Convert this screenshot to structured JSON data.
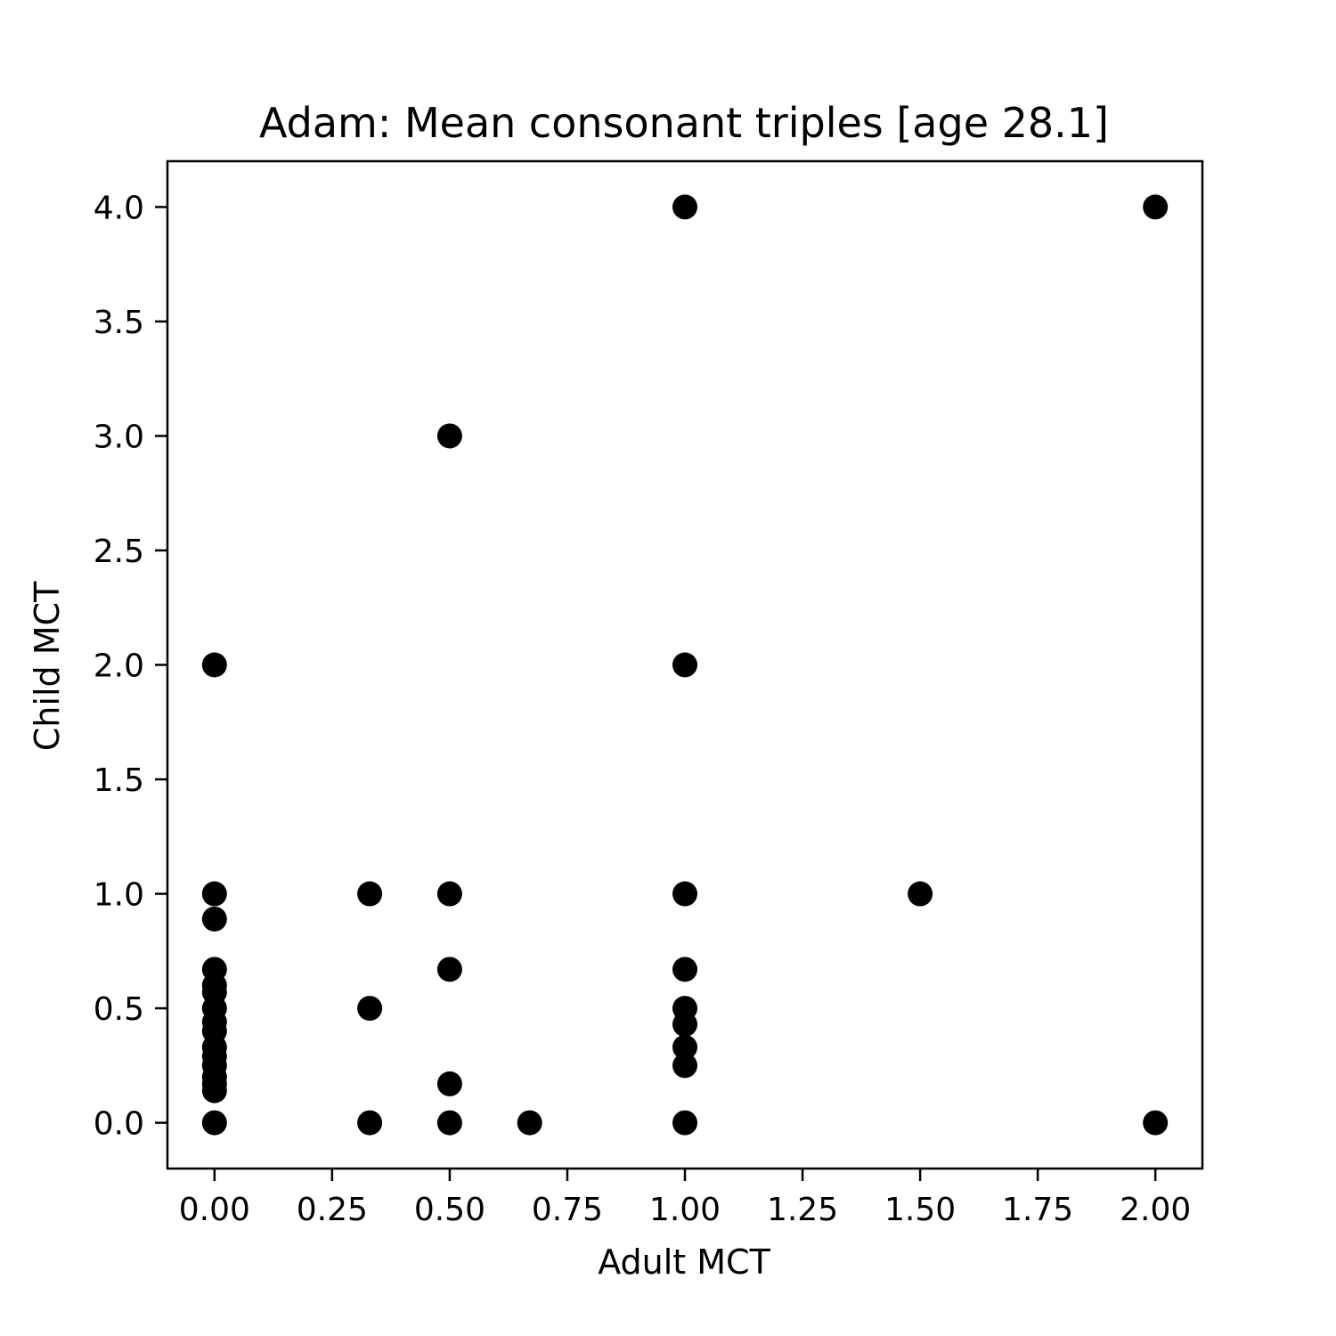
{
  "chart_data": {
    "type": "scatter",
    "title": "Adam: Mean consonant triples [age 28.1]",
    "xlabel": "Adult MCT",
    "ylabel": "Child MCT",
    "xlim": [
      -0.1,
      2.1
    ],
    "ylim": [
      -0.2,
      4.2
    ],
    "grid": false,
    "marker_color": "#000000",
    "xticks": [
      0.0,
      0.25,
      0.5,
      0.75,
      1.0,
      1.25,
      1.5,
      1.75,
      2.0
    ],
    "xtick_labels": [
      "0.00",
      "0.25",
      "0.50",
      "0.75",
      "1.00",
      "1.25",
      "1.50",
      "1.75",
      "2.00"
    ],
    "yticks": [
      0.0,
      0.5,
      1.0,
      1.5,
      2.0,
      2.5,
      3.0,
      3.5,
      4.0
    ],
    "ytick_labels": [
      "0.0",
      "0.5",
      "1.0",
      "1.5",
      "2.0",
      "2.5",
      "3.0",
      "3.5",
      "4.0"
    ],
    "points": [
      {
        "x": 0.0,
        "y": 2.0
      },
      {
        "x": 0.0,
        "y": 1.0
      },
      {
        "x": 0.0,
        "y": 0.89
      },
      {
        "x": 0.0,
        "y": 0.67
      },
      {
        "x": 0.0,
        "y": 0.6
      },
      {
        "x": 0.0,
        "y": 0.57
      },
      {
        "x": 0.0,
        "y": 0.5
      },
      {
        "x": 0.0,
        "y": 0.44
      },
      {
        "x": 0.0,
        "y": 0.4
      },
      {
        "x": 0.0,
        "y": 0.33
      },
      {
        "x": 0.0,
        "y": 0.29
      },
      {
        "x": 0.0,
        "y": 0.25
      },
      {
        "x": 0.0,
        "y": 0.2
      },
      {
        "x": 0.0,
        "y": 0.17
      },
      {
        "x": 0.0,
        "y": 0.14
      },
      {
        "x": 0.0,
        "y": 0.0
      },
      {
        "x": 0.33,
        "y": 1.0
      },
      {
        "x": 0.33,
        "y": 0.5
      },
      {
        "x": 0.33,
        "y": 0.0
      },
      {
        "x": 0.5,
        "y": 3.0
      },
      {
        "x": 0.5,
        "y": 1.0
      },
      {
        "x": 0.5,
        "y": 0.67
      },
      {
        "x": 0.5,
        "y": 0.17
      },
      {
        "x": 0.5,
        "y": 0.0
      },
      {
        "x": 0.67,
        "y": 0.0
      },
      {
        "x": 1.0,
        "y": 4.0
      },
      {
        "x": 1.0,
        "y": 2.0
      },
      {
        "x": 1.0,
        "y": 1.0
      },
      {
        "x": 1.0,
        "y": 0.67
      },
      {
        "x": 1.0,
        "y": 0.5
      },
      {
        "x": 1.0,
        "y": 0.43
      },
      {
        "x": 1.0,
        "y": 0.33
      },
      {
        "x": 1.0,
        "y": 0.25
      },
      {
        "x": 1.0,
        "y": 0.0
      },
      {
        "x": 1.5,
        "y": 1.0
      },
      {
        "x": 2.0,
        "y": 4.0
      },
      {
        "x": 2.0,
        "y": 0.0
      }
    ]
  }
}
